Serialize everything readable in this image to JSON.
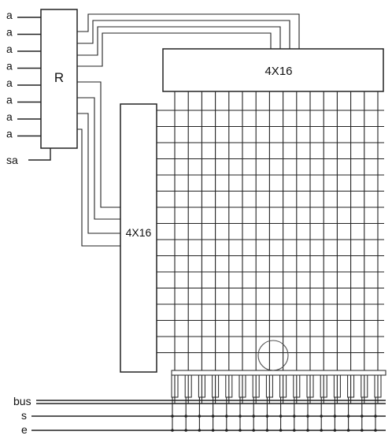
{
  "register": {
    "label": "R",
    "inputs": [
      "a",
      "a",
      "a",
      "a",
      "a",
      "a",
      "a",
      "a"
    ],
    "select_label": "sa"
  },
  "column_decoder": {
    "label": "4X16",
    "outputs": 16
  },
  "row_decoder": {
    "label": "4X16",
    "outputs": 16
  },
  "memory_array": {
    "rows": 16,
    "columns": 16
  },
  "control_lines": [
    {
      "id": "bus",
      "label": "bus"
    },
    {
      "id": "s",
      "label": "s"
    },
    {
      "id": "e",
      "label": "e"
    }
  ],
  "highlight": {
    "shape": "circle",
    "target": "memory cell"
  }
}
